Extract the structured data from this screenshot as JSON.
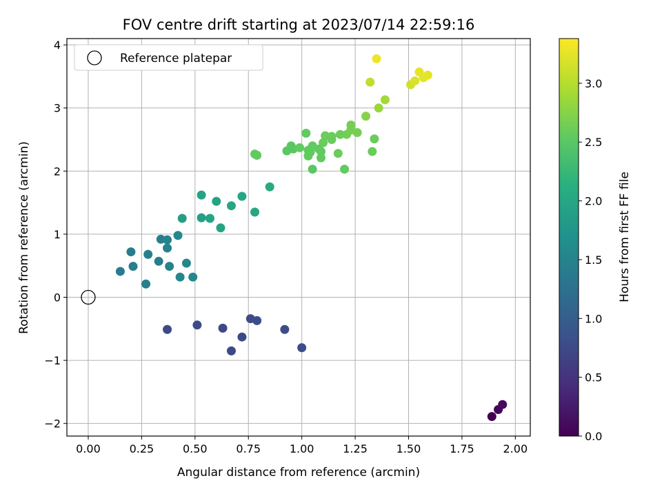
{
  "chart_data": {
    "type": "scatter",
    "title": "FOV centre drift starting at 2023/07/14 22:59:16",
    "xlabel": "Angular distance from reference (arcmin)",
    "ylabel": "Rotation from reference (arcmin)",
    "xlim": [
      -0.1,
      2.07
    ],
    "ylim": [
      -2.2,
      4.1
    ],
    "x_ticks": [
      "0.00",
      "0.25",
      "0.50",
      "0.75",
      "1.00",
      "1.25",
      "1.50",
      "1.75",
      "2.00"
    ],
    "x_tick_values": [
      0,
      0.25,
      0.5,
      0.75,
      1.0,
      1.25,
      1.5,
      1.75,
      2.0
    ],
    "y_ticks": [
      "−2",
      "−1",
      "0",
      "1",
      "2",
      "3",
      "4"
    ],
    "y_tick_values": [
      -2,
      -1,
      0,
      1,
      2,
      3,
      4
    ],
    "grid": true,
    "colormap": "viridis",
    "colorbar": {
      "label": "Hours from first FF file",
      "range": [
        0,
        3.38
      ],
      "ticks": [
        "0.0",
        "0.5",
        "1.0",
        "1.5",
        "2.0",
        "2.5",
        "3.0"
      ],
      "tick_values": [
        0,
        0.5,
        1.0,
        1.5,
        2.0,
        2.5,
        3.0
      ]
    },
    "legend": {
      "position": "top-left",
      "entries": [
        {
          "label": "Reference platepar",
          "marker": "open-circle",
          "color": "#000000"
        }
      ]
    },
    "reference_point": {
      "x": 0,
      "y": 0
    },
    "points": [
      {
        "x": 1.89,
        "y": -1.89,
        "c": 0.0
      },
      {
        "x": 1.92,
        "y": -1.78,
        "c": 0.05
      },
      {
        "x": 1.94,
        "y": -1.7,
        "c": 0.1
      },
      {
        "x": 0.37,
        "y": -0.51,
        "c": 0.75
      },
      {
        "x": 0.51,
        "y": -0.44,
        "c": 0.75
      },
      {
        "x": 0.63,
        "y": -0.49,
        "c": 0.75
      },
      {
        "x": 0.67,
        "y": -0.85,
        "c": 0.75
      },
      {
        "x": 0.72,
        "y": -0.63,
        "c": 0.75
      },
      {
        "x": 0.76,
        "y": -0.34,
        "c": 0.78
      },
      {
        "x": 0.79,
        "y": -0.37,
        "c": 0.78
      },
      {
        "x": 0.92,
        "y": -0.51,
        "c": 0.8
      },
      {
        "x": 1.0,
        "y": -0.8,
        "c": 0.8
      },
      {
        "x": 0.15,
        "y": 0.41,
        "c": 1.4
      },
      {
        "x": 0.2,
        "y": 0.72,
        "c": 1.4
      },
      {
        "x": 0.21,
        "y": 0.49,
        "c": 1.4
      },
      {
        "x": 0.27,
        "y": 0.21,
        "c": 1.45
      },
      {
        "x": 0.28,
        "y": 0.68,
        "c": 1.45
      },
      {
        "x": 0.33,
        "y": 0.57,
        "c": 1.45
      },
      {
        "x": 0.34,
        "y": 0.92,
        "c": 1.45
      },
      {
        "x": 0.37,
        "y": 0.91,
        "c": 1.5
      },
      {
        "x": 0.37,
        "y": 0.78,
        "c": 1.5
      },
      {
        "x": 0.38,
        "y": 0.49,
        "c": 1.5
      },
      {
        "x": 0.42,
        "y": 0.98,
        "c": 1.55
      },
      {
        "x": 0.43,
        "y": 0.32,
        "c": 1.55
      },
      {
        "x": 0.46,
        "y": 0.54,
        "c": 1.55
      },
      {
        "x": 0.49,
        "y": 0.32,
        "c": 1.55
      },
      {
        "x": 0.44,
        "y": 1.25,
        "c": 1.9
      },
      {
        "x": 0.53,
        "y": 1.26,
        "c": 1.9
      },
      {
        "x": 0.53,
        "y": 1.62,
        "c": 1.95
      },
      {
        "x": 0.57,
        "y": 1.25,
        "c": 1.95
      },
      {
        "x": 0.6,
        "y": 1.52,
        "c": 1.95
      },
      {
        "x": 0.62,
        "y": 1.1,
        "c": 1.95
      },
      {
        "x": 0.67,
        "y": 1.45,
        "c": 2.0
      },
      {
        "x": 0.72,
        "y": 1.6,
        "c": 2.0
      },
      {
        "x": 0.78,
        "y": 1.35,
        "c": 2.0
      },
      {
        "x": 0.85,
        "y": 1.75,
        "c": 2.05
      },
      {
        "x": 0.78,
        "y": 2.27,
        "c": 2.55
      },
      {
        "x": 0.79,
        "y": 2.25,
        "c": 2.55
      },
      {
        "x": 0.93,
        "y": 2.32,
        "c": 2.5
      },
      {
        "x": 0.95,
        "y": 2.4,
        "c": 2.5
      },
      {
        "x": 0.96,
        "y": 2.35,
        "c": 2.5
      },
      {
        "x": 0.99,
        "y": 2.37,
        "c": 2.55
      },
      {
        "x": 1.02,
        "y": 2.6,
        "c": 2.55
      },
      {
        "x": 1.03,
        "y": 2.33,
        "c": 2.55
      },
      {
        "x": 1.03,
        "y": 2.24,
        "c": 2.55
      },
      {
        "x": 1.04,
        "y": 2.3,
        "c": 2.55
      },
      {
        "x": 1.05,
        "y": 2.4,
        "c": 2.55
      },
      {
        "x": 1.05,
        "y": 2.03,
        "c": 2.5
      },
      {
        "x": 1.08,
        "y": 2.35,
        "c": 2.55
      },
      {
        "x": 1.09,
        "y": 2.21,
        "c": 2.55
      },
      {
        "x": 1.09,
        "y": 2.31,
        "c": 2.55
      },
      {
        "x": 1.1,
        "y": 2.45,
        "c": 2.6
      },
      {
        "x": 1.11,
        "y": 2.56,
        "c": 2.6
      },
      {
        "x": 1.14,
        "y": 2.55,
        "c": 2.6
      },
      {
        "x": 1.14,
        "y": 2.5,
        "c": 2.6
      },
      {
        "x": 1.17,
        "y": 2.28,
        "c": 2.6
      },
      {
        "x": 1.18,
        "y": 2.58,
        "c": 2.6
      },
      {
        "x": 1.2,
        "y": 2.03,
        "c": 2.55
      },
      {
        "x": 1.21,
        "y": 2.58,
        "c": 2.65
      },
      {
        "x": 1.23,
        "y": 2.65,
        "c": 2.65
      },
      {
        "x": 1.23,
        "y": 2.73,
        "c": 2.65
      },
      {
        "x": 1.26,
        "y": 2.61,
        "c": 2.65
      },
      {
        "x": 1.3,
        "y": 2.87,
        "c": 2.75
      },
      {
        "x": 1.33,
        "y": 2.31,
        "c": 2.6
      },
      {
        "x": 1.34,
        "y": 2.51,
        "c": 2.6
      },
      {
        "x": 1.36,
        "y": 3.0,
        "c": 2.85
      },
      {
        "x": 1.39,
        "y": 3.13,
        "c": 2.9
      },
      {
        "x": 1.32,
        "y": 3.41,
        "c": 3.05
      },
      {
        "x": 1.35,
        "y": 3.78,
        "c": 3.3
      },
      {
        "x": 1.51,
        "y": 3.37,
        "c": 3.15
      },
      {
        "x": 1.53,
        "y": 3.43,
        "c": 3.2
      },
      {
        "x": 1.55,
        "y": 3.57,
        "c": 3.25
      },
      {
        "x": 1.57,
        "y": 3.48,
        "c": 3.25
      },
      {
        "x": 1.59,
        "y": 3.52,
        "c": 3.25
      }
    ]
  }
}
